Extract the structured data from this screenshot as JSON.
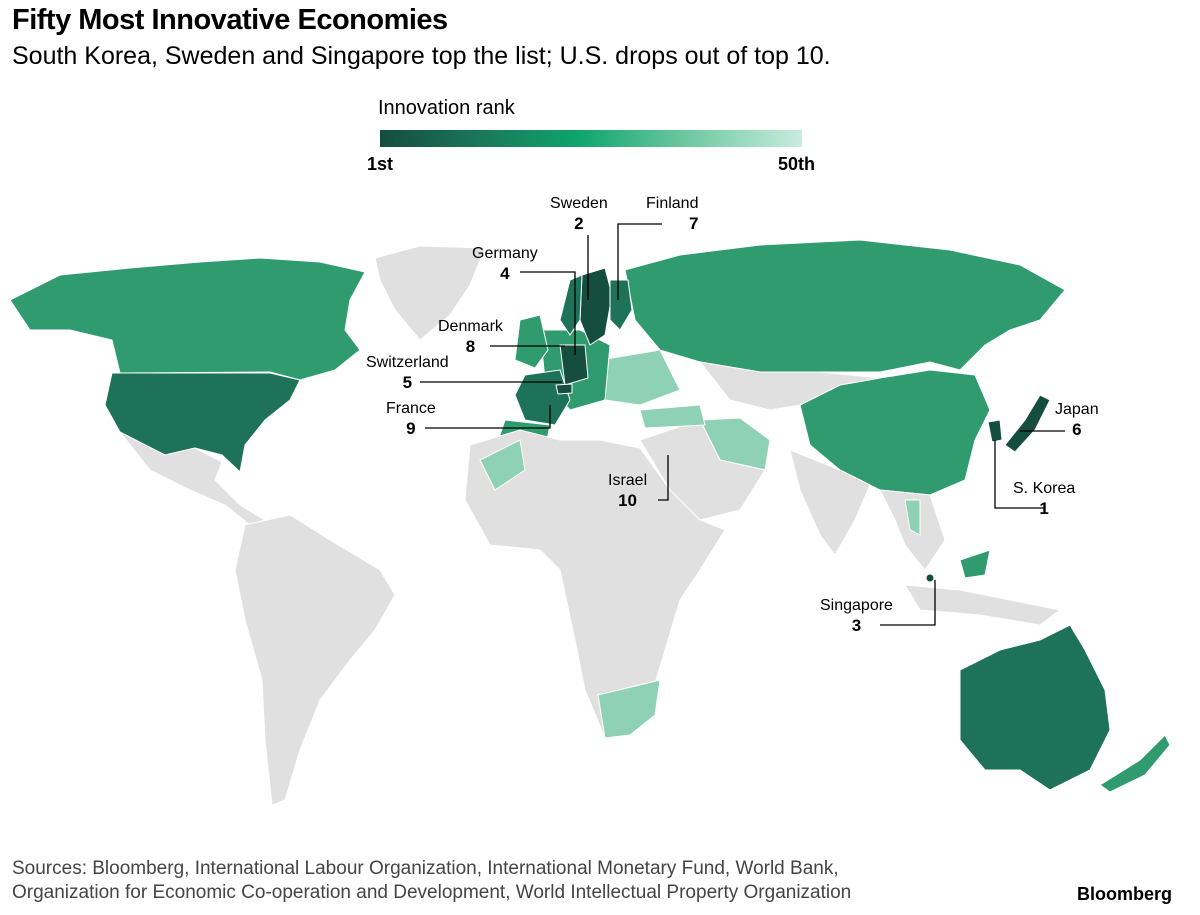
{
  "title": "Fifty Most Innovative Economies",
  "subtitle": "South Korea, Sweden and Singapore top the list; U.S. drops out of top 10.",
  "legend": {
    "title": "Innovation rank",
    "low": "1st",
    "high": "50th",
    "colors": [
      "#154d3f",
      "#0fa56e",
      "#c8ece0"
    ]
  },
  "labels": [
    {
      "name": "Sweden",
      "rank": "2"
    },
    {
      "name": "Finland",
      "rank": "7"
    },
    {
      "name": "Germany",
      "rank": "4"
    },
    {
      "name": "Denmark",
      "rank": "8"
    },
    {
      "name": "Switzerland",
      "rank": "5"
    },
    {
      "name": "France",
      "rank": "9"
    },
    {
      "name": "Israel",
      "rank": "10"
    },
    {
      "name": "Japan",
      "rank": "6"
    },
    {
      "name": "S. Korea",
      "rank": "1"
    },
    {
      "name": "Singapore",
      "rank": "3"
    }
  ],
  "colors": {
    "top": "#154d3f",
    "dark": "#1d7257",
    "mid": "#2f9b6e",
    "light": "#8fd1b4",
    "none": "#e0e0e0"
  },
  "sources": [
    "Sources: Bloomberg, International Labour Organization, International Monetary Fund, World Bank,",
    "Organization for Economic Co-operation and Development, World Intellectual Property Organization"
  ],
  "brand": "Bloomberg"
}
